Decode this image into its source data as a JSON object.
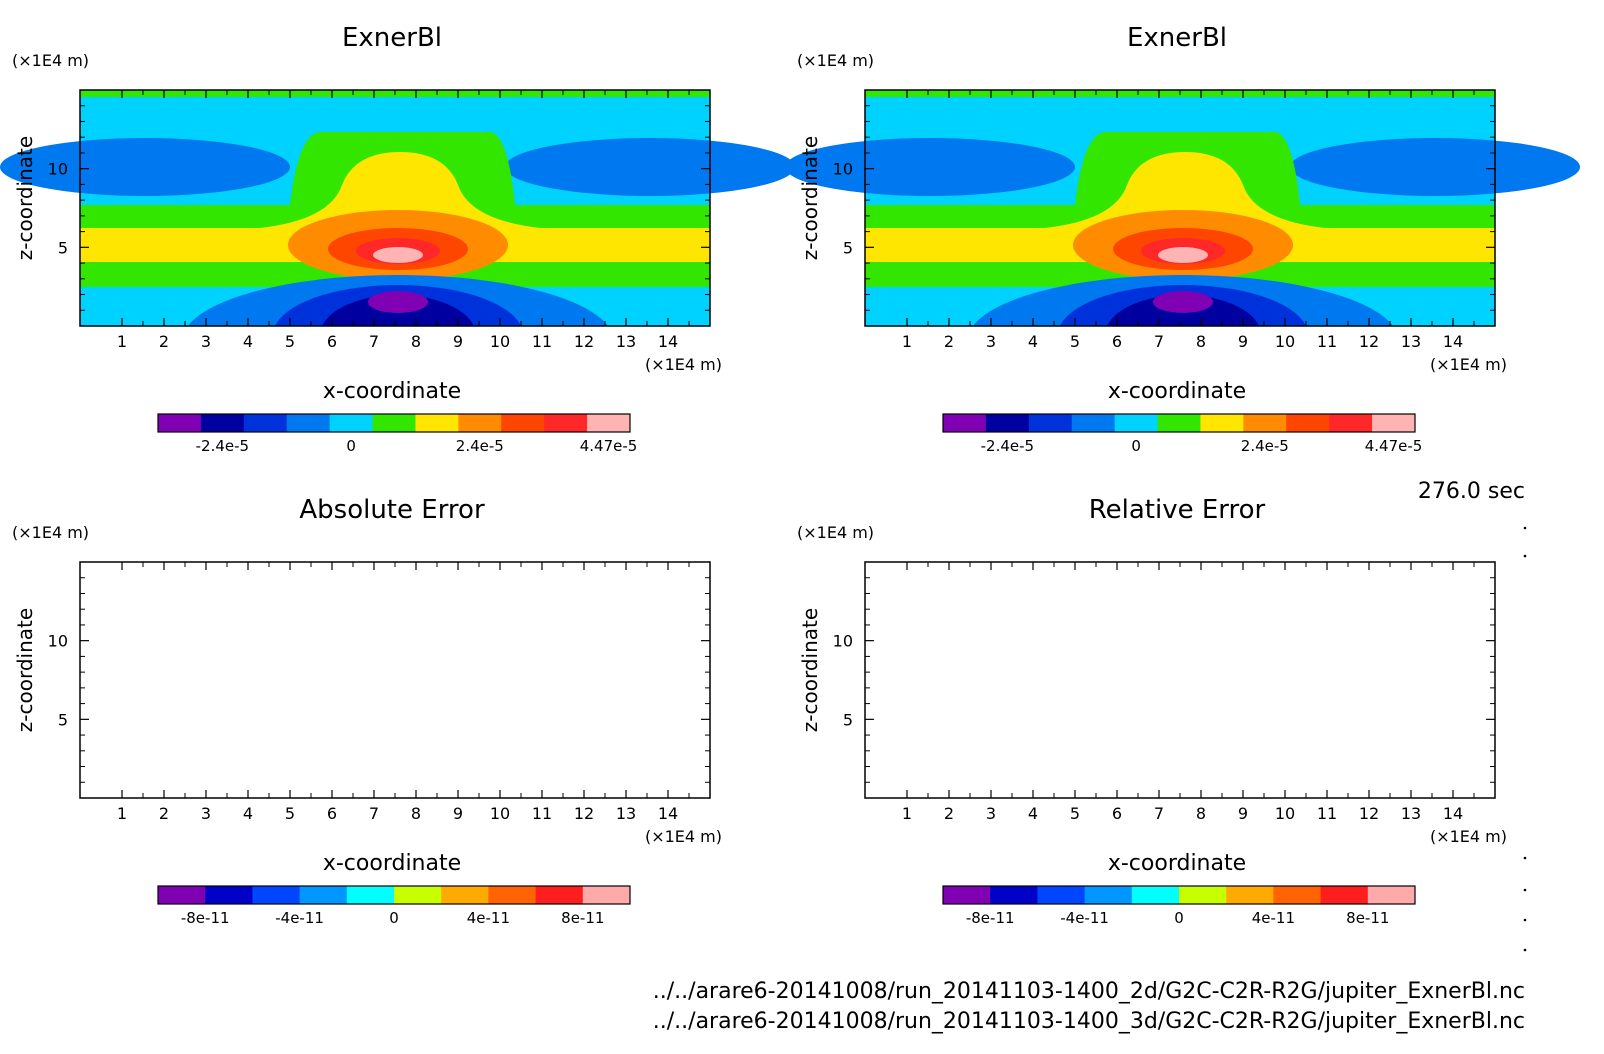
{
  "time_label": "276.0 sec",
  "file_paths": [
    "../../arare6-20141008/run_20141103-1400_2d/G2C-C2R-R2G/jupiter_ExnerBl.nc",
    "../../arare6-20141008/run_20141103-1400_3d/G2C-C2R-R2G/jupiter_ExnerBl.nc"
  ],
  "chart_data": [
    {
      "type": "heatmap",
      "title": "ExnerBl",
      "xlabel": "x-coordinate",
      "ylabel": "z-coordinate",
      "x_unit": "(×1E4 m)",
      "y_unit": "(×1E4 m)",
      "xlim": [
        0,
        15
      ],
      "ylim": [
        0,
        15
      ],
      "xticks": [
        "1",
        "2",
        "3",
        "4",
        "5",
        "6",
        "7",
        "8",
        "9",
        "10",
        "11",
        "12",
        "13",
        "14"
      ],
      "yticks": [
        "5",
        "10"
      ],
      "colorbar": {
        "colors": [
          "#8000b4",
          "#0000a0",
          "#0032dc",
          "#0078f0",
          "#00d2ff",
          "#32e600",
          "#ffe600",
          "#ff8c00",
          "#ff4600",
          "#ff2828",
          "#ffb4b4"
        ],
        "ticks": [
          "-2.4e-5",
          "0",
          "2.4e-5",
          "4.47e-5"
        ]
      }
    },
    {
      "type": "heatmap",
      "title": "ExnerBl",
      "xlabel": "x-coordinate",
      "ylabel": "z-coordinate",
      "x_unit": "(×1E4 m)",
      "y_unit": "(×1E4 m)",
      "xlim": [
        0,
        15
      ],
      "ylim": [
        0,
        15
      ],
      "xticks": [
        "1",
        "2",
        "3",
        "4",
        "5",
        "6",
        "7",
        "8",
        "9",
        "10",
        "11",
        "12",
        "13",
        "14"
      ],
      "yticks": [
        "5",
        "10"
      ],
      "colorbar": {
        "colors": [
          "#8000b4",
          "#0000a0",
          "#0032dc",
          "#0078f0",
          "#00d2ff",
          "#32e600",
          "#ffe600",
          "#ff8c00",
          "#ff4600",
          "#ff2828",
          "#ffb4b4"
        ],
        "ticks": [
          "-2.4e-5",
          "0",
          "2.4e-5",
          "4.47e-5"
        ]
      }
    },
    {
      "type": "heatmap",
      "title": "Absolute Error",
      "xlabel": "x-coordinate",
      "ylabel": "z-coordinate",
      "x_unit": "(×1E4 m)",
      "y_unit": "(×1E4 m)",
      "xlim": [
        0,
        15
      ],
      "ylim": [
        0,
        15
      ],
      "xticks": [
        "1",
        "2",
        "3",
        "4",
        "5",
        "6",
        "7",
        "8",
        "9",
        "10",
        "11",
        "12",
        "13",
        "14"
      ],
      "yticks": [
        "5",
        "10"
      ],
      "colorbar": {
        "colors": [
          "#8000b4",
          "#0000c8",
          "#0046ff",
          "#0096ff",
          "#00ffff",
          "#c8ff00",
          "#ffaa00",
          "#ff6400",
          "#ff1e1e",
          "#ffaaaa"
        ],
        "ticks": [
          "-8e-11",
          "-4e-11",
          "0",
          "4e-11",
          "8e-11"
        ]
      }
    },
    {
      "type": "heatmap",
      "title": "Relative Error",
      "xlabel": "x-coordinate",
      "ylabel": "z-coordinate",
      "x_unit": "(×1E4 m)",
      "y_unit": "(×1E4 m)",
      "xlim": [
        0,
        15
      ],
      "ylim": [
        0,
        15
      ],
      "xticks": [
        "1",
        "2",
        "3",
        "4",
        "5",
        "6",
        "7",
        "8",
        "9",
        "10",
        "11",
        "12",
        "13",
        "14"
      ],
      "yticks": [
        "5",
        "10"
      ],
      "colorbar": {
        "colors": [
          "#8000b4",
          "#0000c8",
          "#0046ff",
          "#0096ff",
          "#00ffff",
          "#c8ff00",
          "#ffaa00",
          "#ff6400",
          "#ff1e1e",
          "#ffaaaa"
        ],
        "ticks": [
          "-8e-11",
          "-4e-11",
          "0",
          "4e-11",
          "8e-11"
        ]
      }
    }
  ]
}
